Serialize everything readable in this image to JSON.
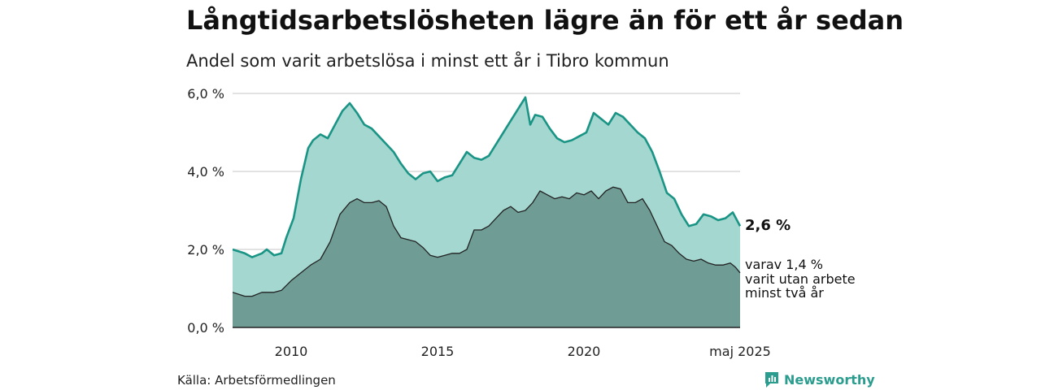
{
  "title": "Långtidsarbetslösheten lägre än för ett år sedan",
  "subtitle": "Andel som varit arbetslösa i minst ett år i Tibro kommun",
  "source": "Källa: Arbetsförmedlingen",
  "brand": "Newsworthy",
  "colors": {
    "series1_line": "#1a9485",
    "series1_fill": "#a4d7d0",
    "series2_line": "#222222",
    "series2_fill": "#6f9d96",
    "grid": "#d9d9d9",
    "brand": "#2a9d8f"
  },
  "chart_data": {
    "type": "area",
    "x_ticks": [
      "2010",
      "2015",
      "2020",
      "maj 2025"
    ],
    "y_ticks": [
      "0,0 %",
      "2,0 %",
      "4,0 %",
      "6,0 %"
    ],
    "ylim": [
      0,
      6
    ],
    "xlim": [
      "2008-01",
      "2025-05"
    ],
    "grid": true,
    "end_labels": {
      "total": "2,6 %",
      "sub_line1": "varav 1,4 %",
      "sub_line2": "varit utan arbete",
      "sub_line3": "minst två år"
    },
    "series": [
      {
        "points": [
          [
            "2008-01",
            2.0
          ],
          [
            "2008-06",
            1.9
          ],
          [
            "2008-09",
            1.8
          ],
          [
            "2009-01",
            1.9
          ],
          [
            "2009-03",
            2.0
          ],
          [
            "2009-06",
            1.85
          ],
          [
            "2009-09",
            1.9
          ],
          [
            "2009-11",
            2.3
          ],
          [
            "2010-02",
            2.8
          ],
          [
            "2010-05",
            3.8
          ],
          [
            "2010-08",
            4.6
          ],
          [
            "2010-10",
            4.8
          ],
          [
            "2011-01",
            4.95
          ],
          [
            "2011-04",
            4.85
          ],
          [
            "2011-07",
            5.2
          ],
          [
            "2011-10",
            5.55
          ],
          [
            "2012-01",
            5.75
          ],
          [
            "2012-04",
            5.5
          ],
          [
            "2012-07",
            5.2
          ],
          [
            "2012-10",
            5.1
          ],
          [
            "2013-01",
            4.9
          ],
          [
            "2013-04",
            4.7
          ],
          [
            "2013-07",
            4.5
          ],
          [
            "2013-10",
            4.2
          ],
          [
            "2014-01",
            3.95
          ],
          [
            "2014-04",
            3.8
          ],
          [
            "2014-07",
            3.95
          ],
          [
            "2014-10",
            4.0
          ],
          [
            "2015-01",
            3.75
          ],
          [
            "2015-04",
            3.85
          ],
          [
            "2015-07",
            3.9
          ],
          [
            "2015-10",
            4.2
          ],
          [
            "2016-01",
            4.5
          ],
          [
            "2016-04",
            4.35
          ],
          [
            "2016-07",
            4.3
          ],
          [
            "2016-10",
            4.4
          ],
          [
            "2017-01",
            4.7
          ],
          [
            "2017-04",
            5.0
          ],
          [
            "2017-07",
            5.3
          ],
          [
            "2017-10",
            5.6
          ],
          [
            "2018-01",
            5.9
          ],
          [
            "2018-03",
            5.2
          ],
          [
            "2018-05",
            5.45
          ],
          [
            "2018-08",
            5.4
          ],
          [
            "2018-11",
            5.1
          ],
          [
            "2019-02",
            4.85
          ],
          [
            "2019-05",
            4.75
          ],
          [
            "2019-08",
            4.8
          ],
          [
            "2019-11",
            4.9
          ],
          [
            "2020-02",
            5.0
          ],
          [
            "2020-05",
            5.5
          ],
          [
            "2020-08",
            5.35
          ],
          [
            "2020-11",
            5.2
          ],
          [
            "2021-02",
            5.5
          ],
          [
            "2021-05",
            5.4
          ],
          [
            "2021-08",
            5.2
          ],
          [
            "2021-11",
            5.0
          ],
          [
            "2022-02",
            4.85
          ],
          [
            "2022-05",
            4.5
          ],
          [
            "2022-08",
            4.0
          ],
          [
            "2022-11",
            3.45
          ],
          [
            "2023-02",
            3.3
          ],
          [
            "2023-05",
            2.9
          ],
          [
            "2023-08",
            2.6
          ],
          [
            "2023-11",
            2.65
          ],
          [
            "2024-02",
            2.9
          ],
          [
            "2024-05",
            2.85
          ],
          [
            "2024-08",
            2.75
          ],
          [
            "2024-11",
            2.8
          ],
          [
            "2025-02",
            2.95
          ],
          [
            "2025-05",
            2.6
          ]
        ]
      },
      {
        "points": [
          [
            "2008-01",
            0.9
          ],
          [
            "2008-06",
            0.8
          ],
          [
            "2008-09",
            0.8
          ],
          [
            "2009-01",
            0.9
          ],
          [
            "2009-06",
            0.9
          ],
          [
            "2009-09",
            0.95
          ],
          [
            "2010-01",
            1.2
          ],
          [
            "2010-05",
            1.4
          ],
          [
            "2010-09",
            1.6
          ],
          [
            "2011-01",
            1.75
          ],
          [
            "2011-05",
            2.2
          ],
          [
            "2011-09",
            2.9
          ],
          [
            "2012-01",
            3.2
          ],
          [
            "2012-04",
            3.3
          ],
          [
            "2012-07",
            3.2
          ],
          [
            "2012-10",
            3.2
          ],
          [
            "2013-01",
            3.25
          ],
          [
            "2013-04",
            3.1
          ],
          [
            "2013-07",
            2.6
          ],
          [
            "2013-10",
            2.3
          ],
          [
            "2014-01",
            2.25
          ],
          [
            "2014-04",
            2.2
          ],
          [
            "2014-07",
            2.05
          ],
          [
            "2014-10",
            1.85
          ],
          [
            "2015-01",
            1.8
          ],
          [
            "2015-04",
            1.85
          ],
          [
            "2015-07",
            1.9
          ],
          [
            "2015-10",
            1.9
          ],
          [
            "2016-01",
            2.0
          ],
          [
            "2016-04",
            2.5
          ],
          [
            "2016-07",
            2.5
          ],
          [
            "2016-10",
            2.6
          ],
          [
            "2017-01",
            2.8
          ],
          [
            "2017-04",
            3.0
          ],
          [
            "2017-07",
            3.1
          ],
          [
            "2017-10",
            2.95
          ],
          [
            "2018-01",
            3.0
          ],
          [
            "2018-04",
            3.2
          ],
          [
            "2018-07",
            3.5
          ],
          [
            "2018-10",
            3.4
          ],
          [
            "2019-01",
            3.3
          ],
          [
            "2019-04",
            3.35
          ],
          [
            "2019-07",
            3.3
          ],
          [
            "2019-10",
            3.45
          ],
          [
            "2020-01",
            3.4
          ],
          [
            "2020-04",
            3.5
          ],
          [
            "2020-07",
            3.3
          ],
          [
            "2020-10",
            3.5
          ],
          [
            "2021-01",
            3.6
          ],
          [
            "2021-04",
            3.55
          ],
          [
            "2021-07",
            3.2
          ],
          [
            "2021-10",
            3.2
          ],
          [
            "2022-01",
            3.3
          ],
          [
            "2022-04",
            3.0
          ],
          [
            "2022-07",
            2.6
          ],
          [
            "2022-10",
            2.2
          ],
          [
            "2023-01",
            2.1
          ],
          [
            "2023-04",
            1.9
          ],
          [
            "2023-07",
            1.75
          ],
          [
            "2023-10",
            1.7
          ],
          [
            "2024-01",
            1.75
          ],
          [
            "2024-04",
            1.65
          ],
          [
            "2024-07",
            1.6
          ],
          [
            "2024-10",
            1.6
          ],
          [
            "2025-01",
            1.65
          ],
          [
            "2025-03",
            1.55
          ],
          [
            "2025-05",
            1.4
          ]
        ]
      }
    ]
  }
}
